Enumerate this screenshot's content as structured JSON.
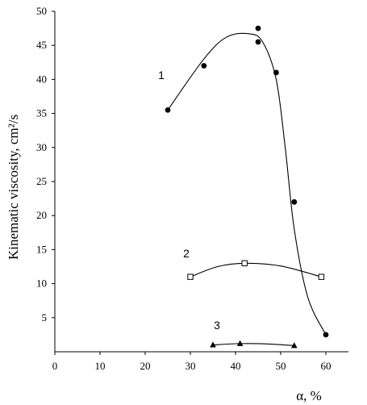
{
  "chart_data": {
    "type": "scatter",
    "xlabel": "α, %",
    "ylabel": "Kinematic viscosity, cm²/s",
    "xlim": [
      0,
      65
    ],
    "ylim": [
      0,
      50
    ],
    "x_ticks": [
      0,
      10,
      20,
      30,
      40,
      50,
      60
    ],
    "y_ticks": [
      5,
      10,
      15,
      20,
      25,
      30,
      35,
      40,
      45,
      50
    ],
    "grid": false,
    "legend": "none",
    "series": [
      {
        "name": "1",
        "marker": "filled-circle",
        "points": [
          {
            "x": 25,
            "y": 35.5
          },
          {
            "x": 33,
            "y": 42
          },
          {
            "x": 45,
            "y": 47.5
          },
          {
            "x": 45,
            "y": 45.5
          },
          {
            "x": 49,
            "y": 41
          },
          {
            "x": 53,
            "y": 22
          },
          {
            "x": 60,
            "y": 2.5
          }
        ],
        "curve": [
          [
            25,
            35.5
          ],
          [
            33,
            43
          ],
          [
            38,
            46.2
          ],
          [
            43,
            46.7
          ],
          [
            46,
            45.5
          ],
          [
            49,
            40
          ],
          [
            51,
            30
          ],
          [
            53,
            18
          ],
          [
            56,
            8
          ],
          [
            60,
            2.5
          ]
        ]
      },
      {
        "name": "2",
        "marker": "open-square",
        "points": [
          {
            "x": 30,
            "y": 11
          },
          {
            "x": 42,
            "y": 13
          },
          {
            "x": 59,
            "y": 11
          }
        ],
        "curve": [
          [
            30,
            11
          ],
          [
            36,
            12.5
          ],
          [
            42,
            13
          ],
          [
            50,
            12.6
          ],
          [
            59,
            11
          ]
        ]
      },
      {
        "name": "3",
        "marker": "filled-triangle",
        "points": [
          {
            "x": 35,
            "y": 1
          },
          {
            "x": 41,
            "y": 1.2
          },
          {
            "x": 53,
            "y": 0.9
          }
        ],
        "curve": [
          [
            35,
            1
          ],
          [
            41,
            1.2
          ],
          [
            47,
            1.15
          ],
          [
            53,
            0.9
          ]
        ]
      }
    ]
  }
}
